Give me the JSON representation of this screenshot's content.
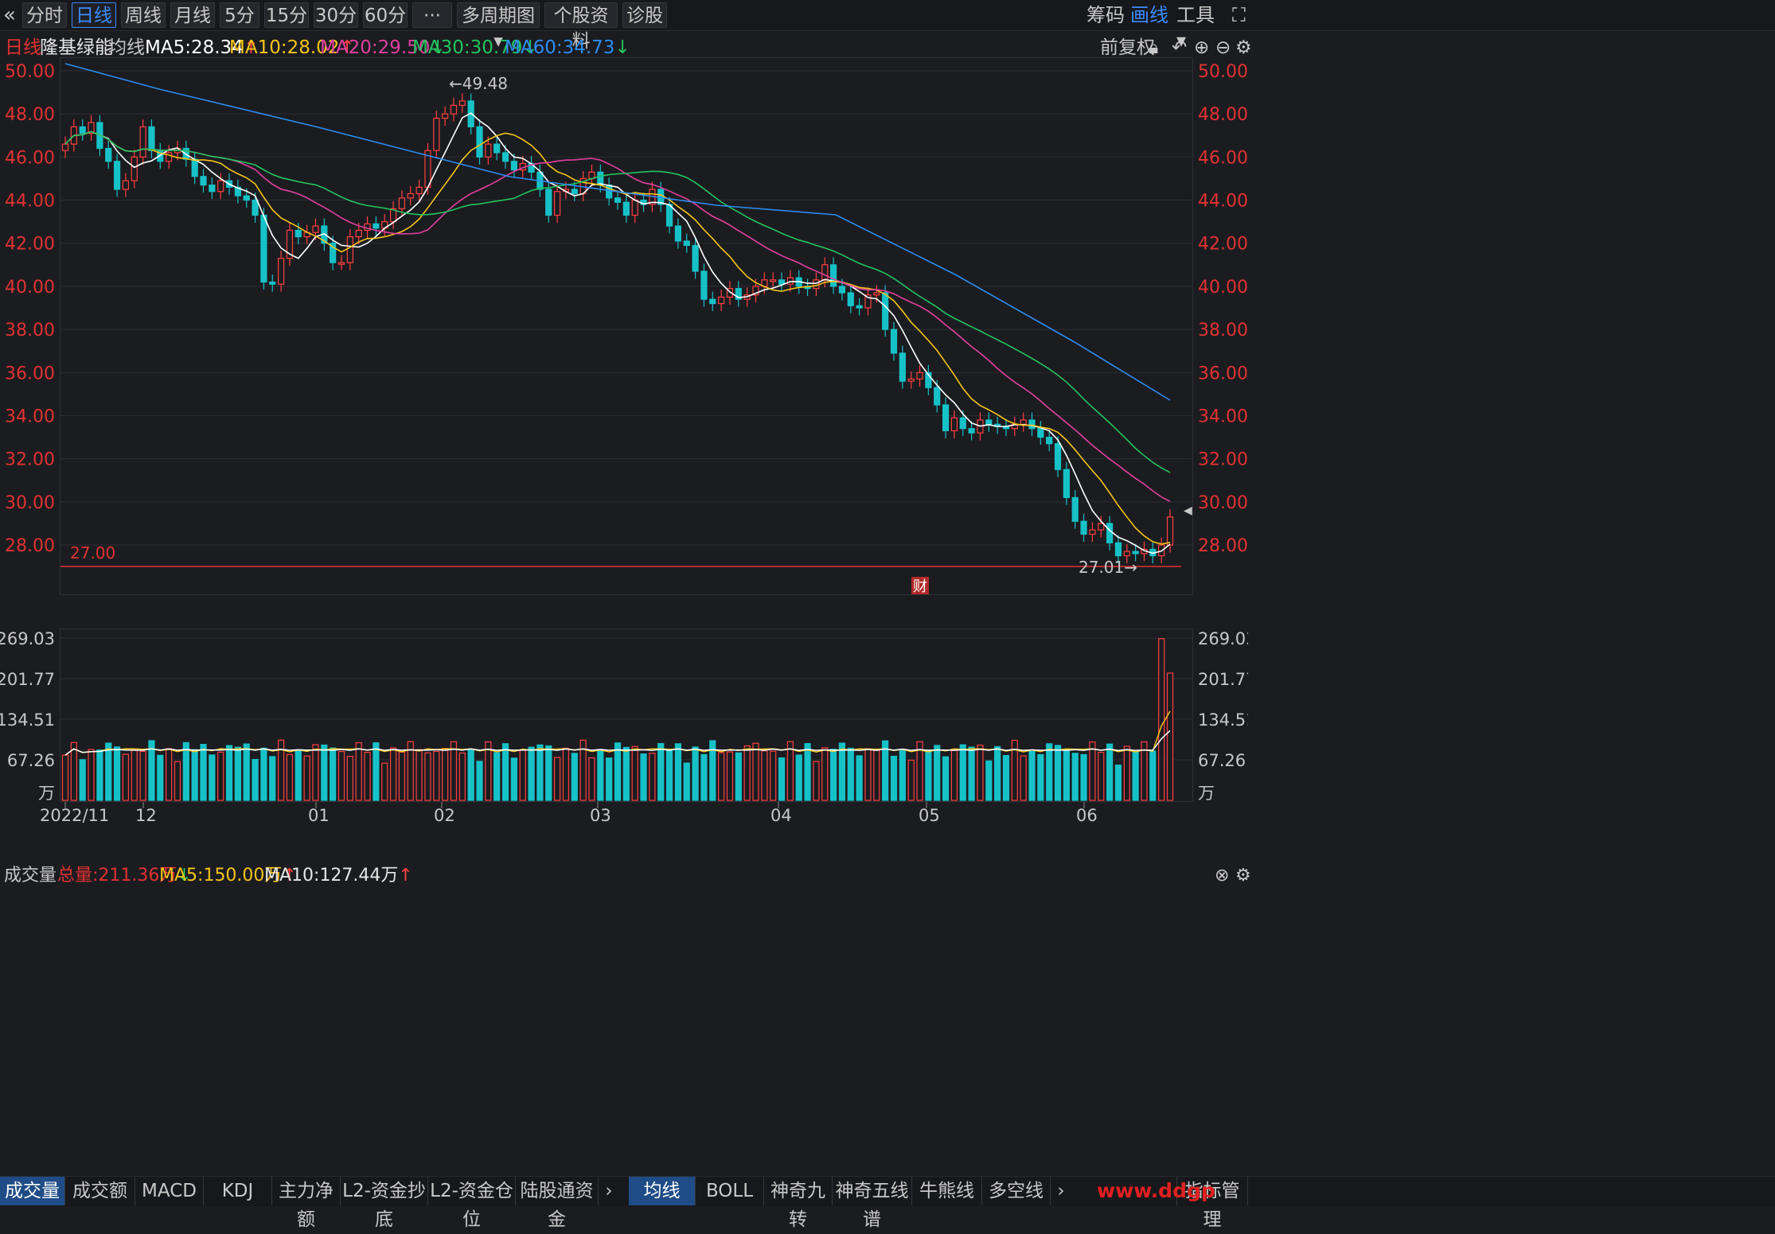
{
  "toolbar": {
    "back_icon": "double-chevron-left-icon",
    "tabs": [
      "分时",
      "日线",
      "周线",
      "月线",
      "5分",
      "15分",
      "30分",
      "60分",
      "···",
      "多周期图",
      "个股资料",
      "诊股"
    ],
    "active_tab": "日线",
    "right": [
      "筹码",
      "画线",
      "工具"
    ]
  },
  "info": {
    "period": "日线",
    "stock": "隆基绿能",
    "ma_label": "均线",
    "ma5": "MA5:28.34",
    "ma10": "MA10:28.02",
    "ma20": "MA20:29.50",
    "ma30": "MA30:30.79",
    "ma60": "MA60:34.73",
    "adjust": "前复权",
    "colors": {
      "ma5": "#ffffff",
      "ma10": "#f5c518",
      "ma20": "#e040a0",
      "ma30": "#22c55e",
      "ma60": "#2d8cf0",
      "up": "#ff4040",
      "down": "#16c2c8",
      "axis": "#e03232"
    }
  },
  "price_axis": [
    "50.00",
    "48.00",
    "46.00",
    "44.00",
    "42.00",
    "40.00",
    "38.00",
    "36.00",
    "34.00",
    "32.00",
    "30.00",
    "28.00"
  ],
  "annotations": {
    "high": "←49.48",
    "low": "27.01→",
    "line_level": "27.00",
    "cai": "财"
  },
  "volume": {
    "title": "成交量",
    "total": "总量:211.36万",
    "ma5": "MA5:150.00万",
    "ma10": "MA10:127.44万",
    "axis": [
      "269.03",
      "201.77",
      "134.51",
      "67.26",
      "万"
    ]
  },
  "x_axis": [
    "2022/11",
    "12",
    "01",
    "02",
    "03",
    "04",
    "05",
    "06"
  ],
  "bottom_tabs_left": [
    "成交量",
    "成交额",
    "MACD",
    "KDJ",
    "主力净额",
    "L2-资金抄底",
    "L2-资金仓位",
    "陆股通资金"
  ],
  "bottom_tabs_right": [
    "均线",
    "BOLL",
    "神奇九转",
    "神奇五线谱",
    "牛熊线",
    "多空线"
  ],
  "bottom_right": "指标管理",
  "watermark": "www.ddgp"
}
